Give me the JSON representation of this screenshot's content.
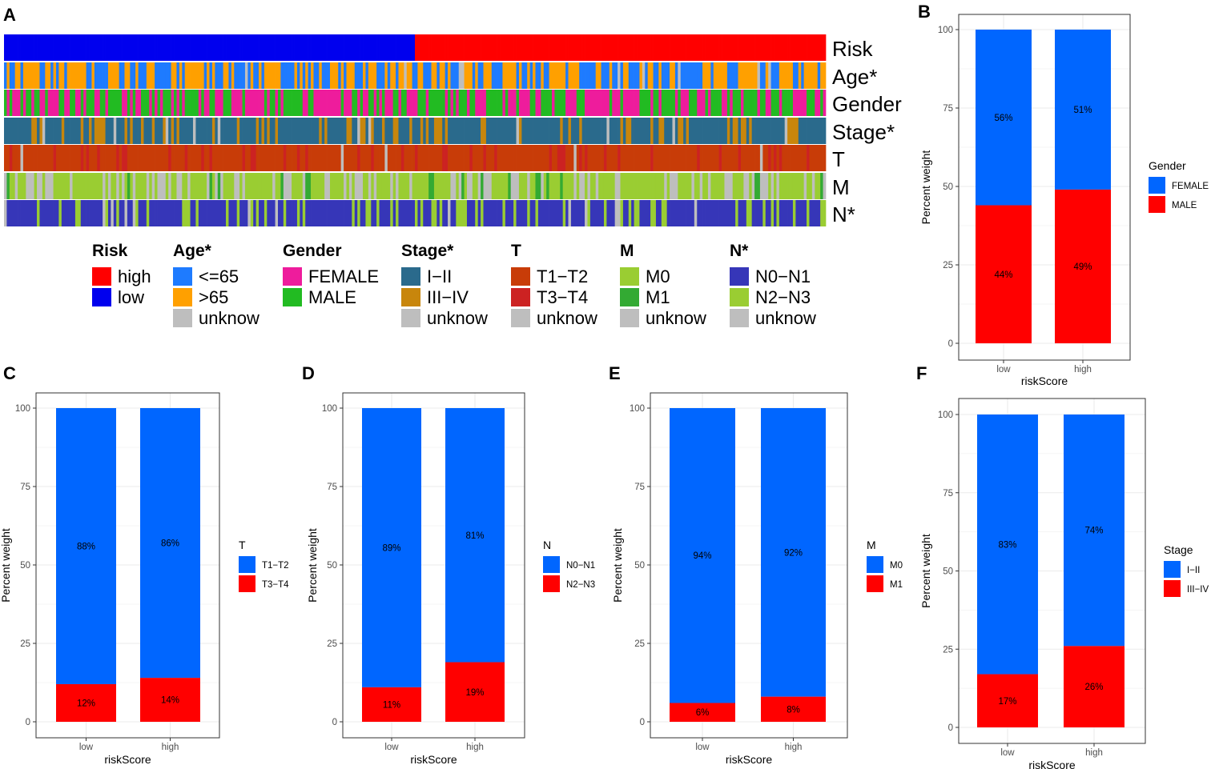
{
  "panels": {
    "A": "A",
    "B": "B",
    "C": "C",
    "D": "D",
    "E": "E",
    "F": "F"
  },
  "colors": {
    "high": "#FF0000",
    "low": "#0000EE",
    "age_le65": "#1E7BFF",
    "age_gt65": "#FFA000",
    "unknow": "#BEBEBE",
    "female": "#EE1C9C",
    "male": "#22BB22",
    "stage_I_II": "#2A6A8C",
    "stage_III_IV": "#C8860C",
    "t_T1_T2": "#C83C08",
    "t_T3_T4": "#CC2222",
    "m_M0": "#9ACD32",
    "m_M1": "#33AA33",
    "n_N0_N1": "#3636B8",
    "n_N2_N3": "#9ACD32",
    "bar_blue": "#0066FF",
    "bar_red": "#FF0000",
    "grid": "#EBEBEB",
    "frame": "#333333"
  },
  "heatmap": {
    "n_samples": 300,
    "rows": [
      {
        "label": "Risk",
        "key": "risk"
      },
      {
        "label": "Age*",
        "key": "age"
      },
      {
        "label": "Gender",
        "key": "gender"
      },
      {
        "label": "Stage*",
        "key": "stage"
      },
      {
        "label": "T",
        "key": "t"
      },
      {
        "label": "M",
        "key": "m"
      },
      {
        "label": "N*",
        "key": "n"
      }
    ],
    "legend": [
      {
        "title": "Risk",
        "items": [
          {
            "label": "high",
            "color": "#FF0000"
          },
          {
            "label": "low",
            "color": "#0000EE"
          }
        ]
      },
      {
        "title": "Age*",
        "items": [
          {
            "label": "<=65",
            "color": "#1E7BFF"
          },
          {
            "label": ">65",
            "color": "#FFA000"
          },
          {
            "label": "unknow",
            "color": "#BEBEBE"
          }
        ]
      },
      {
        "title": "Gender",
        "items": [
          {
            "label": "FEMALE",
            "color": "#EE1C9C"
          },
          {
            "label": "MALE",
            "color": "#22BB22"
          }
        ]
      },
      {
        "title": "Stage*",
        "items": [
          {
            "label": "I−II",
            "color": "#2A6A8C"
          },
          {
            "label": "III−IV",
            "color": "#C8860C"
          },
          {
            "label": "unknow",
            "color": "#BEBEBE"
          }
        ]
      },
      {
        "title": "T",
        "items": [
          {
            "label": "T1−T2",
            "color": "#C83C08"
          },
          {
            "label": "T3−T4",
            "color": "#CC2222"
          },
          {
            "label": "unknow",
            "color": "#BEBEBE"
          }
        ]
      },
      {
        "title": "M",
        "items": [
          {
            "label": "M0",
            "color": "#9ACD32"
          },
          {
            "label": "M1",
            "color": "#33AA33"
          },
          {
            "label": "unknow",
            "color": "#BEBEBE"
          }
        ]
      },
      {
        "title": "N*",
        "items": [
          {
            "label": "N0−N1",
            "color": "#3636B8"
          },
          {
            "label": "N2−N3",
            "color": "#9ACD32"
          },
          {
            "label": "unknow",
            "color": "#BEBEBE"
          }
        ]
      }
    ]
  },
  "chart_data": [
    {
      "panel": "B",
      "type": "bar",
      "stacked": true,
      "categories": [
        "low",
        "high"
      ],
      "xlabel": "riskScore",
      "ylabel": "Percent weight",
      "ylim": [
        0,
        100
      ],
      "yticks": [
        "0",
        "25",
        "50",
        "75",
        "100"
      ],
      "legend_title": "Gender",
      "series": [
        {
          "name": "FEMALE",
          "color": "#0066FF",
          "values": [
            56,
            51
          ],
          "labels": [
            "56%",
            "51%"
          ]
        },
        {
          "name": "MALE",
          "color": "#FF0000",
          "values": [
            44,
            49
          ],
          "labels": [
            "44%",
            "49%"
          ]
        }
      ]
    },
    {
      "panel": "C",
      "type": "bar",
      "stacked": true,
      "categories": [
        "low",
        "high"
      ],
      "xlabel": "riskScore",
      "ylabel": "Percent weight",
      "ylim": [
        0,
        100
      ],
      "yticks": [
        "0",
        "25",
        "50",
        "75",
        "100"
      ],
      "legend_title": "T",
      "series": [
        {
          "name": "T1−T2",
          "color": "#0066FF",
          "values": [
            88,
            86
          ],
          "labels": [
            "88%",
            "86%"
          ]
        },
        {
          "name": "T3−T4",
          "color": "#FF0000",
          "values": [
            12,
            14
          ],
          "labels": [
            "12%",
            "14%"
          ]
        }
      ]
    },
    {
      "panel": "D",
      "type": "bar",
      "stacked": true,
      "categories": [
        "low",
        "high"
      ],
      "xlabel": "riskScore",
      "ylabel": "Percent weight",
      "ylim": [
        0,
        100
      ],
      "yticks": [
        "0",
        "25",
        "50",
        "75",
        "100"
      ],
      "legend_title": "N",
      "series": [
        {
          "name": "N0−N1",
          "color": "#0066FF",
          "values": [
            89,
            81
          ],
          "labels": [
            "89%",
            "81%"
          ]
        },
        {
          "name": "N2−N3",
          "color": "#FF0000",
          "values": [
            11,
            19
          ],
          "labels": [
            "11%",
            "19%"
          ]
        }
      ]
    },
    {
      "panel": "E",
      "type": "bar",
      "stacked": true,
      "categories": [
        "low",
        "high"
      ],
      "xlabel": "riskScore",
      "ylabel": "Percent weight",
      "ylim": [
        0,
        100
      ],
      "yticks": [
        "0",
        "25",
        "50",
        "75",
        "100"
      ],
      "legend_title": "M",
      "series": [
        {
          "name": "M0",
          "color": "#0066FF",
          "values": [
            94,
            92
          ],
          "labels": [
            "94%",
            "92%"
          ]
        },
        {
          "name": "M1",
          "color": "#FF0000",
          "values": [
            6,
            8
          ],
          "labels": [
            "6%",
            "8%"
          ]
        }
      ]
    },
    {
      "panel": "F",
      "type": "bar",
      "stacked": true,
      "categories": [
        "low",
        "high"
      ],
      "xlabel": "riskScore",
      "ylabel": "Percent weight",
      "ylim": [
        0,
        100
      ],
      "yticks": [
        "0",
        "25",
        "50",
        "75",
        "100"
      ],
      "legend_title": "Stage",
      "series": [
        {
          "name": "I−II",
          "color": "#0066FF",
          "values": [
            83,
            74
          ],
          "labels": [
            "83%",
            "74%"
          ]
        },
        {
          "name": "III−IV",
          "color": "#FF0000",
          "values": [
            17,
            26
          ],
          "labels": [
            "17%",
            "26%"
          ]
        }
      ]
    }
  ]
}
